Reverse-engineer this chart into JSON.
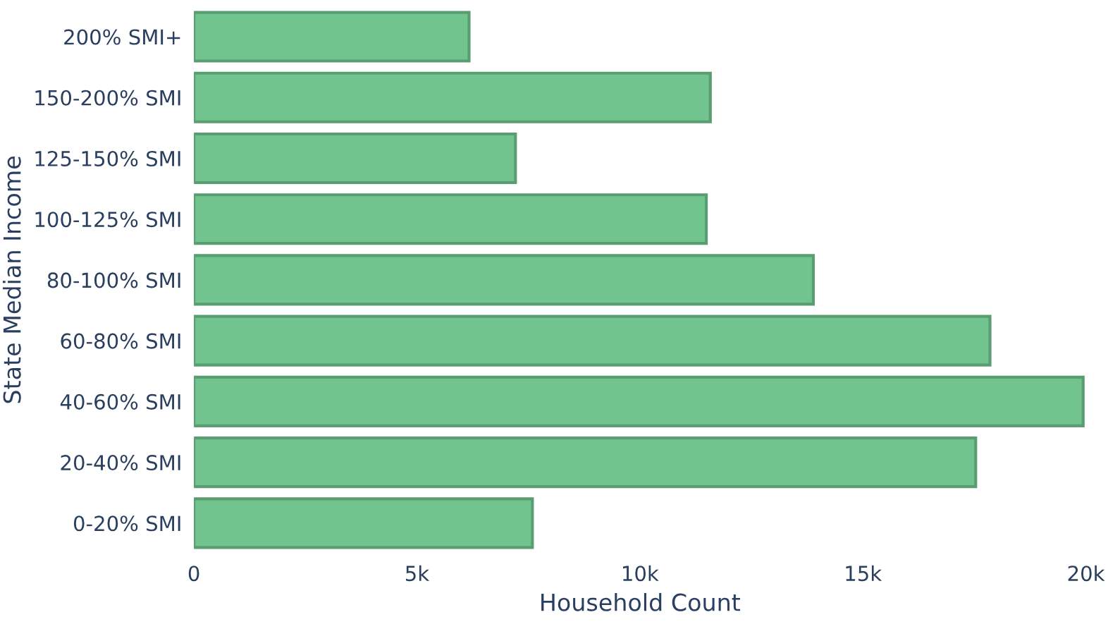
{
  "chart_data": {
    "type": "bar",
    "orientation": "horizontal",
    "xlabel": "Household Count",
    "ylabel": "State Median Income",
    "categories": [
      "200% SMI+",
      "150-200% SMI",
      "125-150% SMI",
      "100-125% SMI",
      "80-100% SMI",
      "60-80% SMI",
      "40-60% SMI",
      "20-40% SMI",
      "0-20% SMI"
    ],
    "values": [
      6170,
      11580,
      7210,
      11490,
      13890,
      17850,
      19940,
      17530,
      7590
    ],
    "color": "#72c48f",
    "xlim": [
      0,
      20000
    ],
    "xticks": [
      0,
      {
        "value": 5000,
        "label": "5k"
      },
      {
        "value": 10000,
        "label": "10k"
      },
      {
        "value": 15000,
        "label": "15k"
      },
      {
        "value": 20000,
        "label": "20k"
      }
    ],
    "grid": false,
    "legend": false
  }
}
